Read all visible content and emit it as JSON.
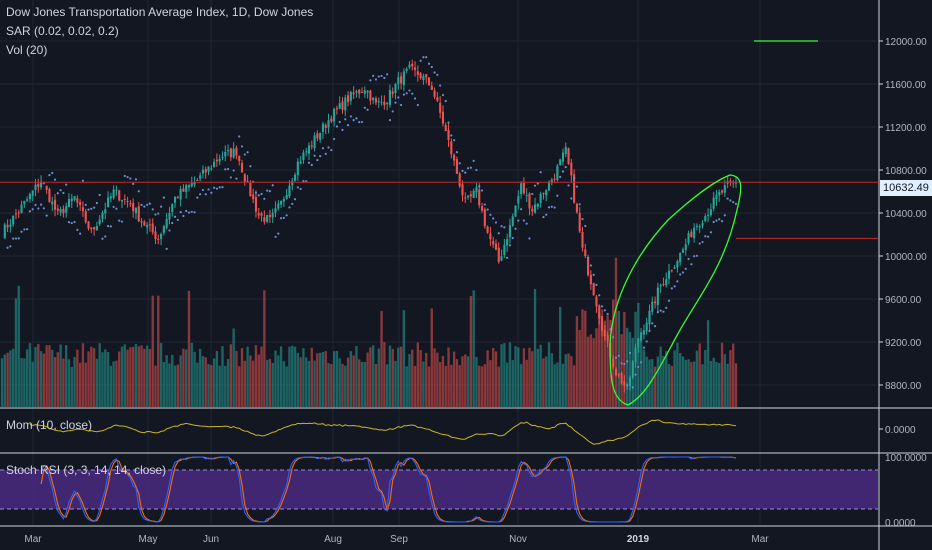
{
  "header": {
    "title": "Dow Jones Transportation Average Index, 1D, Dow Jones",
    "sar_label": "SAR (0.02, 0.02, 0.2)",
    "vol_label": "Vol (20)"
  },
  "mom_label": "Mom (10, close)",
  "stoch_label": "Stoch RSI (3, 3, 14, 14, close)",
  "current_price_label": "10632.49",
  "colors": {
    "up": "#26a69a",
    "down": "#ef5350",
    "sar": "#6a8fd1",
    "mom": "#c8b42a",
    "stoch_k": "#2962ff",
    "stoch_d": "#ff6d00",
    "drawing": "#33ff33",
    "hline": "#c62828",
    "band": "#4a2a80"
  },
  "chart_data": [
    {
      "type": "candlestick",
      "title": "Dow Jones Transportation Average Index, 1D, Dow Jones",
      "y_ticks": [
        "12000.00",
        "11600.00",
        "11200.00",
        "10800.00",
        "10400.00",
        "10000.00",
        "9600.00",
        "9200.00",
        "8800.00"
      ],
      "x_ticks": [
        "Mar",
        "May",
        "Jun",
        "Aug",
        "Sep",
        "Nov",
        "2019",
        "Mar"
      ],
      "ylim": [
        8700,
        12200
      ],
      "last_price": 10632.49,
      "keypoints": [
        [
          0,
          10200
        ],
        [
          8,
          10450
        ],
        [
          14,
          10650
        ],
        [
          20,
          10350
        ],
        [
          26,
          10500
        ],
        [
          32,
          10200
        ],
        [
          40,
          10550
        ],
        [
          46,
          10450
        ],
        [
          50,
          10300
        ],
        [
          56,
          10150
        ],
        [
          62,
          10500
        ],
        [
          70,
          10650
        ],
        [
          78,
          10850
        ],
        [
          84,
          10900
        ],
        [
          88,
          10600
        ],
        [
          92,
          10350
        ],
        [
          96,
          10300
        ],
        [
          100,
          10450
        ],
        [
          106,
          10800
        ],
        [
          112,
          11000
        ],
        [
          118,
          11200
        ],
        [
          124,
          11350
        ],
        [
          130,
          11450
        ],
        [
          134,
          11300
        ],
        [
          138,
          11350
        ],
        [
          142,
          11500
        ],
        [
          146,
          11600
        ],
        [
          150,
          11550
        ],
        [
          154,
          11450
        ],
        [
          158,
          11150
        ],
        [
          162,
          10800
        ],
        [
          166,
          10450
        ],
        [
          170,
          10550
        ],
        [
          174,
          10200
        ],
        [
          178,
          9950
        ],
        [
          182,
          10250
        ],
        [
          186,
          10600
        ],
        [
          190,
          10400
        ],
        [
          194,
          10550
        ],
        [
          198,
          10700
        ],
        [
          202,
          10900
        ],
        [
          204,
          10650
        ],
        [
          208,
          10050
        ],
        [
          212,
          9700
        ],
        [
          216,
          9300
        ],
        [
          220,
          9000
        ],
        [
          224,
          8850
        ],
        [
          228,
          9300
        ],
        [
          232,
          9500
        ],
        [
          236,
          9750
        ],
        [
          240,
          9900
        ],
        [
          244,
          10050
        ],
        [
          248,
          10250
        ],
        [
          252,
          10350
        ],
        [
          256,
          10500
        ],
        [
          260,
          10600
        ],
        [
          263,
          10632.49
        ]
      ],
      "hline_price": 10632.49,
      "hline2_price": 10150,
      "series_sar_name": "SAR (0.02, 0.02, 0.2)"
    },
    {
      "type": "bar",
      "title": "Vol (20)",
      "note": "volume bars at bottom of price pane"
    },
    {
      "type": "line",
      "title": "Mom (10, close)",
      "y_ticks": [
        "0.0000"
      ]
    },
    {
      "type": "line",
      "title": "Stoch RSI (3, 3, 14, 14, close)",
      "y_ticks": [
        "100.0000",
        "0.0000"
      ],
      "ylim": [
        0,
        100
      ],
      "band": [
        20,
        80
      ]
    }
  ]
}
